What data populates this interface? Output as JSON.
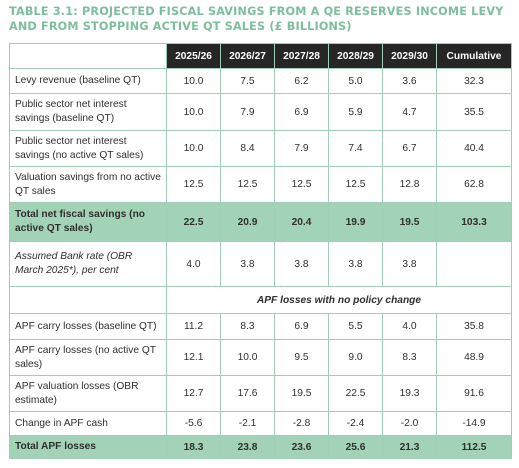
{
  "table": {
    "title": "TABLE 3.1: PROJECTED FISCAL SAVINGS FROM A QE RESERVES INCOME LEVY AND FROM STOPPING ACTIVE QT SALES (£ BILLIONS)",
    "columns": [
      "2025/26",
      "2026/27",
      "2027/28",
      "2028/29",
      "2029/30",
      "Cumulative"
    ],
    "rows": [
      {
        "label": "Levy revenue (baseline QT)",
        "values": [
          "10.0",
          "7.5",
          "6.2",
          "5.0",
          "3.6",
          "32.3"
        ]
      },
      {
        "label": "Public sector net interest savings (baseline QT)",
        "values": [
          "10.0",
          "7.9",
          "6.9",
          "5.9",
          "4.7",
          "35.5"
        ]
      },
      {
        "label": "Public sector net interest savings (no active QT sales)",
        "values": [
          "10.0",
          "8.4",
          "7.9",
          "7.4",
          "6.7",
          "40.4"
        ]
      },
      {
        "label": "Valuation savings from no active QT sales",
        "values": [
          "12.5",
          "12.5",
          "12.5",
          "12.5",
          "12.8",
          "62.8"
        ]
      },
      {
        "label": "Total net fiscal savings (no active QT sales)",
        "values": [
          "22.5",
          "20.9",
          "20.4",
          "19.9",
          "19.5",
          "103.3"
        ]
      },
      {
        "label": "Assumed Bank rate (OBR March 2025*), per cent",
        "values": [
          "4.0",
          "3.8",
          "3.8",
          "3.8",
          "3.8",
          ""
        ]
      }
    ],
    "section_heading": "APF losses with no policy change",
    "rows2": [
      {
        "label": "APF carry losses (baseline QT)",
        "values": [
          "11.2",
          "8.3",
          "6.9",
          "5.5",
          "4.0",
          "35.8"
        ]
      },
      {
        "label": "APF carry losses (no active QT sales)",
        "values": [
          "12.1",
          "10.0",
          "9.5",
          "9.0",
          "8.3",
          "48.9"
        ]
      },
      {
        "label": "APF valuation losses (OBR estimate)",
        "values": [
          "12.7",
          "17.6",
          "19.5",
          "22.5",
          "19.3",
          "91.6"
        ]
      },
      {
        "label": "Change in APF cash",
        "values": [
          "-5.6",
          "-2.1",
          "-2.8",
          "-2.4",
          "-2.0",
          "-14.9"
        ]
      },
      {
        "label": "Total APF losses",
        "values": [
          "18.3",
          "23.8",
          "23.6",
          "25.6",
          "21.3",
          "112.5"
        ]
      }
    ]
  },
  "colors": {
    "title": "#7dbe9c",
    "header_bg": "#262626",
    "highlight_bg": "#a3d3b6",
    "border": "#9fcdb6"
  }
}
